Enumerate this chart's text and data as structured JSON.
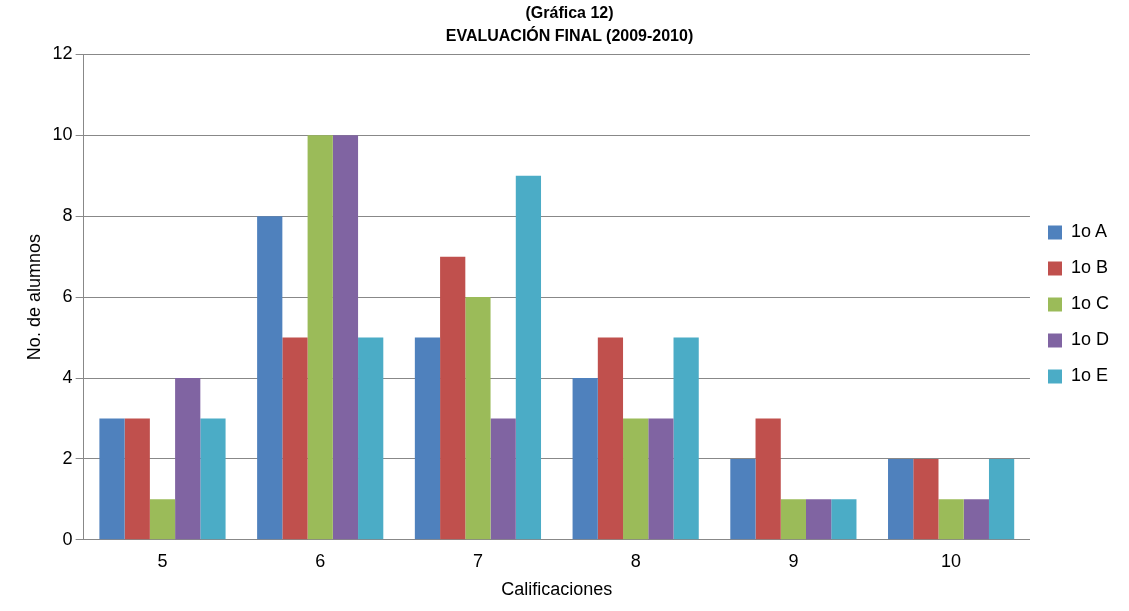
{
  "chart_data": {
    "type": "bar",
    "title": "(Gráfica 12)",
    "subtitle": "EVALUACIÓN FINAL (2009-2010)",
    "xlabel": "Calificaciones",
    "ylabel": "No. de alumnos",
    "categories": [
      "5",
      "6",
      "7",
      "8",
      "9",
      "10"
    ],
    "series": [
      {
        "name": "1o A",
        "color": "#4f81bd",
        "values": [
          3,
          8,
          5,
          4,
          2,
          2
        ]
      },
      {
        "name": "1o B",
        "color": "#c0504d",
        "values": [
          3,
          5,
          7,
          5,
          3,
          2
        ]
      },
      {
        "name": "1o C",
        "color": "#9bbb59",
        "values": [
          1,
          10,
          6,
          3,
          1,
          1
        ]
      },
      {
        "name": "1o D",
        "color": "#8064a2",
        "values": [
          4,
          10,
          3,
          3,
          1,
          1
        ]
      },
      {
        "name": "1o E",
        "color": "#4bacc6",
        "values": [
          3,
          5,
          9,
          5,
          1,
          2
        ]
      }
    ],
    "ylim": [
      0,
      12
    ],
    "yticks": [
      0,
      2,
      4,
      6,
      8,
      10,
      12
    ],
    "grid": "y",
    "legend": "right"
  }
}
